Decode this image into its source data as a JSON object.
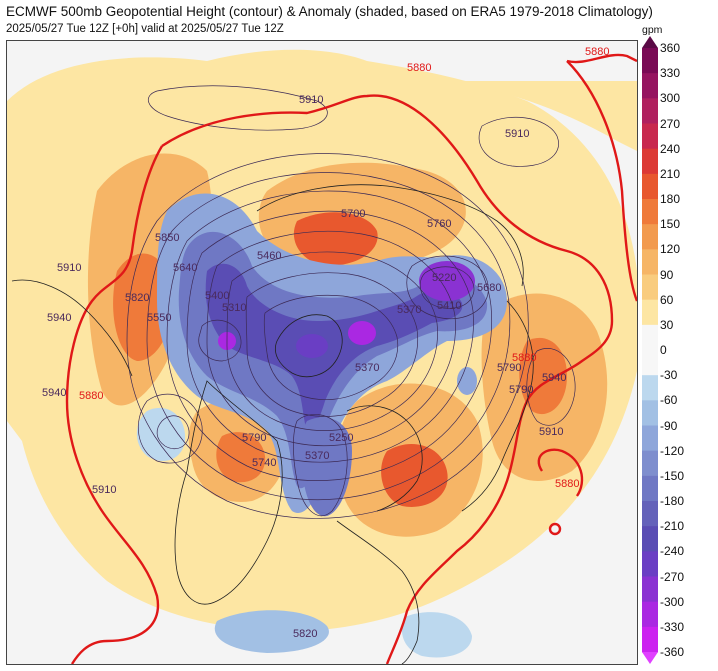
{
  "header": {
    "title": "ECMWF 500mb Geopotential Height (contour) & Anomaly (shaded, based on ERA5 1979-2018 Climatology)",
    "subtitle": "2025/05/27 Tue 12Z [+0h] valid at 2025/05/27 Tue 12Z"
  },
  "colorbar": {
    "unit": "gpm",
    "ticks": [
      "360",
      "330",
      "300",
      "270",
      "240",
      "210",
      "180",
      "150",
      "120",
      "90",
      "60",
      "30",
      "0",
      "-30",
      "-60",
      "-90",
      "-120",
      "-150",
      "-180",
      "-210",
      "-240",
      "-270",
      "-300",
      "-330",
      "-360"
    ],
    "colors": [
      "#7a0a55",
      "#961460",
      "#b0205f",
      "#c8284e",
      "#dc3a35",
      "#e8582e",
      "#ef7a3a",
      "#f29a4e",
      "#f6b566",
      "#f9cc7e",
      "#fde6a3",
      "#f7f7f7",
      "#f7f7f7",
      "#bcd8ee",
      "#a2c0e4",
      "#8ea6da",
      "#7e8ece",
      "#6f78c4",
      "#6462ba",
      "#5a4db4",
      "#6a3ec4",
      "#8a32d2",
      "#aa28e2",
      "#cc22f0"
    ]
  },
  "contour_labels": [
    {
      "text": "5880",
      "color": "#e01818"
    },
    {
      "text": "5880",
      "color": "#e01818"
    },
    {
      "text": "5910",
      "color": "#4a2a5c"
    },
    {
      "text": "5910",
      "color": "#4a2a5c"
    },
    {
      "text": "5700",
      "color": "#4a2a5c"
    },
    {
      "text": "5760",
      "color": "#4a2a5c"
    },
    {
      "text": "5850",
      "color": "#4a2a5c"
    },
    {
      "text": "5460",
      "color": "#4a2a5c"
    },
    {
      "text": "5220",
      "color": "#4a2a5c"
    },
    {
      "text": "5400",
      "color": "#4a2a5c"
    },
    {
      "text": "5310",
      "color": "#4a2a5c"
    },
    {
      "text": "5370",
      "color": "#4a2a5c"
    },
    {
      "text": "5410",
      "color": "#4a2a5c"
    },
    {
      "text": "5640",
      "color": "#4a2a5c"
    },
    {
      "text": "5680",
      "color": "#4a2a5c"
    },
    {
      "text": "5820",
      "color": "#4a2a5c"
    },
    {
      "text": "5550",
      "color": "#4a2a5c"
    },
    {
      "text": "5910",
      "color": "#4a2a5c"
    },
    {
      "text": "5940",
      "color": "#4a2a5c"
    },
    {
      "text": "5940",
      "color": "#4a2a5c"
    },
    {
      "text": "5880",
      "color": "#e01818"
    },
    {
      "text": "5790",
      "color": "#4a2a5c"
    },
    {
      "text": "5370",
      "color": "#4a2a5c"
    },
    {
      "text": "5940",
      "color": "#4a2a5c"
    },
    {
      "text": "5910",
      "color": "#4a2a5c"
    },
    {
      "text": "5880",
      "color": "#e01818"
    },
    {
      "text": "5790",
      "color": "#4a2a5c"
    },
    {
      "text": "5740",
      "color": "#4a2a5c"
    },
    {
      "text": "5370",
      "color": "#4a2a5c"
    },
    {
      "text": "5250",
      "color": "#4a2a5c"
    },
    {
      "text": "5910",
      "color": "#4a2a5c"
    },
    {
      "text": "5820",
      "color": "#4a2a5c"
    },
    {
      "text": "5790",
      "color": "#4a2a5c"
    },
    {
      "text": "5880",
      "color": "#e01818"
    }
  ]
}
